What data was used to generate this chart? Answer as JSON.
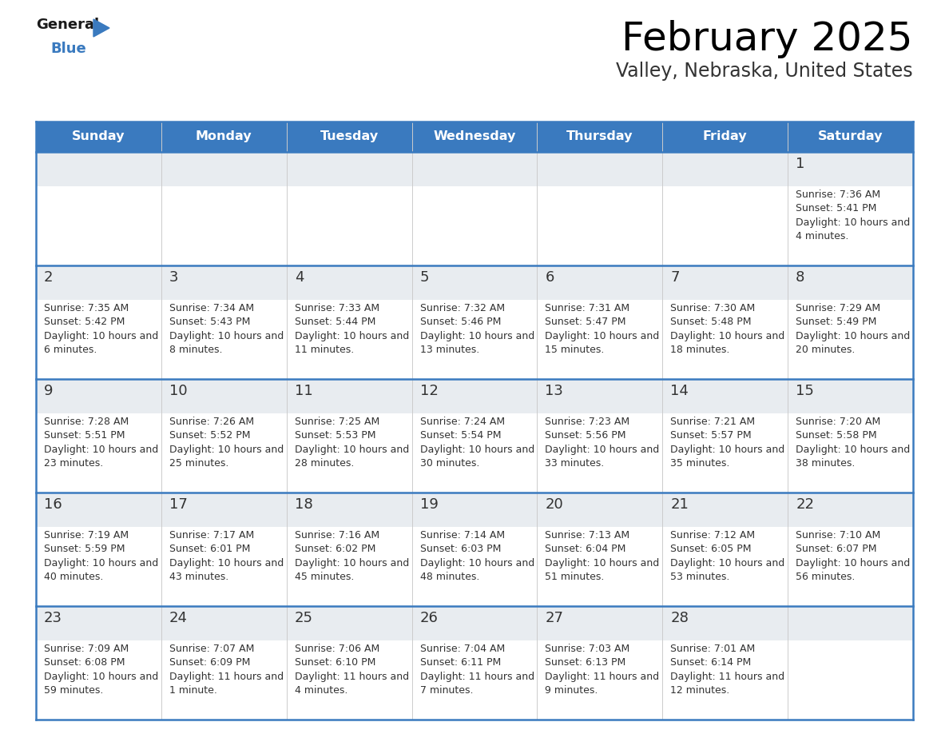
{
  "title": "February 2025",
  "subtitle": "Valley, Nebraska, United States",
  "header_bg": "#3a7abf",
  "header_text_color": "#ffffff",
  "cell_bg_top": "#e8ecf0",
  "cell_bg_bottom": "#ffffff",
  "day_number_color": "#333333",
  "info_text_color": "#333333",
  "border_color": "#3a7abf",
  "vline_color": "#cccccc",
  "weekdays": [
    "Sunday",
    "Monday",
    "Tuesday",
    "Wednesday",
    "Thursday",
    "Friday",
    "Saturday"
  ],
  "days": [
    {
      "day": 1,
      "col": 6,
      "row": 0,
      "sunrise": "7:36 AM",
      "sunset": "5:41 PM",
      "daylight": "10 hours and 4 minutes."
    },
    {
      "day": 2,
      "col": 0,
      "row": 1,
      "sunrise": "7:35 AM",
      "sunset": "5:42 PM",
      "daylight": "10 hours and 6 minutes."
    },
    {
      "day": 3,
      "col": 1,
      "row": 1,
      "sunrise": "7:34 AM",
      "sunset": "5:43 PM",
      "daylight": "10 hours and 8 minutes."
    },
    {
      "day": 4,
      "col": 2,
      "row": 1,
      "sunrise": "7:33 AM",
      "sunset": "5:44 PM",
      "daylight": "10 hours and 11 minutes."
    },
    {
      "day": 5,
      "col": 3,
      "row": 1,
      "sunrise": "7:32 AM",
      "sunset": "5:46 PM",
      "daylight": "10 hours and 13 minutes."
    },
    {
      "day": 6,
      "col": 4,
      "row": 1,
      "sunrise": "7:31 AM",
      "sunset": "5:47 PM",
      "daylight": "10 hours and 15 minutes."
    },
    {
      "day": 7,
      "col": 5,
      "row": 1,
      "sunrise": "7:30 AM",
      "sunset": "5:48 PM",
      "daylight": "10 hours and 18 minutes."
    },
    {
      "day": 8,
      "col": 6,
      "row": 1,
      "sunrise": "7:29 AM",
      "sunset": "5:49 PM",
      "daylight": "10 hours and 20 minutes."
    },
    {
      "day": 9,
      "col": 0,
      "row": 2,
      "sunrise": "7:28 AM",
      "sunset": "5:51 PM",
      "daylight": "10 hours and 23 minutes."
    },
    {
      "day": 10,
      "col": 1,
      "row": 2,
      "sunrise": "7:26 AM",
      "sunset": "5:52 PM",
      "daylight": "10 hours and 25 minutes."
    },
    {
      "day": 11,
      "col": 2,
      "row": 2,
      "sunrise": "7:25 AM",
      "sunset": "5:53 PM",
      "daylight": "10 hours and 28 minutes."
    },
    {
      "day": 12,
      "col": 3,
      "row": 2,
      "sunrise": "7:24 AM",
      "sunset": "5:54 PM",
      "daylight": "10 hours and 30 minutes."
    },
    {
      "day": 13,
      "col": 4,
      "row": 2,
      "sunrise": "7:23 AM",
      "sunset": "5:56 PM",
      "daylight": "10 hours and 33 minutes."
    },
    {
      "day": 14,
      "col": 5,
      "row": 2,
      "sunrise": "7:21 AM",
      "sunset": "5:57 PM",
      "daylight": "10 hours and 35 minutes."
    },
    {
      "day": 15,
      "col": 6,
      "row": 2,
      "sunrise": "7:20 AM",
      "sunset": "5:58 PM",
      "daylight": "10 hours and 38 minutes."
    },
    {
      "day": 16,
      "col": 0,
      "row": 3,
      "sunrise": "7:19 AM",
      "sunset": "5:59 PM",
      "daylight": "10 hours and 40 minutes."
    },
    {
      "day": 17,
      "col": 1,
      "row": 3,
      "sunrise": "7:17 AM",
      "sunset": "6:01 PM",
      "daylight": "10 hours and 43 minutes."
    },
    {
      "day": 18,
      "col": 2,
      "row": 3,
      "sunrise": "7:16 AM",
      "sunset": "6:02 PM",
      "daylight": "10 hours and 45 minutes."
    },
    {
      "day": 19,
      "col": 3,
      "row": 3,
      "sunrise": "7:14 AM",
      "sunset": "6:03 PM",
      "daylight": "10 hours and 48 minutes."
    },
    {
      "day": 20,
      "col": 4,
      "row": 3,
      "sunrise": "7:13 AM",
      "sunset": "6:04 PM",
      "daylight": "10 hours and 51 minutes."
    },
    {
      "day": 21,
      "col": 5,
      "row": 3,
      "sunrise": "7:12 AM",
      "sunset": "6:05 PM",
      "daylight": "10 hours and 53 minutes."
    },
    {
      "day": 22,
      "col": 6,
      "row": 3,
      "sunrise": "7:10 AM",
      "sunset": "6:07 PM",
      "daylight": "10 hours and 56 minutes."
    },
    {
      "day": 23,
      "col": 0,
      "row": 4,
      "sunrise": "7:09 AM",
      "sunset": "6:08 PM",
      "daylight": "10 hours and 59 minutes."
    },
    {
      "day": 24,
      "col": 1,
      "row": 4,
      "sunrise": "7:07 AM",
      "sunset": "6:09 PM",
      "daylight": "11 hours and 1 minute."
    },
    {
      "day": 25,
      "col": 2,
      "row": 4,
      "sunrise": "7:06 AM",
      "sunset": "6:10 PM",
      "daylight": "11 hours and 4 minutes."
    },
    {
      "day": 26,
      "col": 3,
      "row": 4,
      "sunrise": "7:04 AM",
      "sunset": "6:11 PM",
      "daylight": "11 hours and 7 minutes."
    },
    {
      "day": 27,
      "col": 4,
      "row": 4,
      "sunrise": "7:03 AM",
      "sunset": "6:13 PM",
      "daylight": "11 hours and 9 minutes."
    },
    {
      "day": 28,
      "col": 5,
      "row": 4,
      "sunrise": "7:01 AM",
      "sunset": "6:14 PM",
      "daylight": "11 hours and 12 minutes."
    }
  ],
  "fig_width": 11.88,
  "fig_height": 9.18,
  "dpi": 100
}
